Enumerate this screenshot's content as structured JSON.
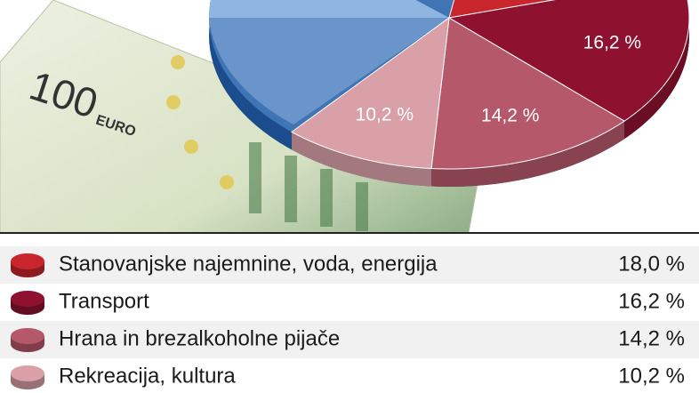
{
  "banknote": {
    "amount": "100",
    "currency": "EURO"
  },
  "chart_data": {
    "type": "pie",
    "categories": [
      "Stanovanjske najemnine, voda, energija",
      "Transport",
      "Hrana in brezalkoholne pijače",
      "Rekreacija, kultura"
    ],
    "values": [
      18.0,
      16.2,
      14.2,
      10.2
    ],
    "value_labels": [
      "18,0 %",
      "16,2 %",
      "14,2 %",
      "10,2 %"
    ],
    "colors": [
      "#c8252c",
      "#8e1230",
      "#b5586a",
      "#d9a0a8"
    ]
  }
}
